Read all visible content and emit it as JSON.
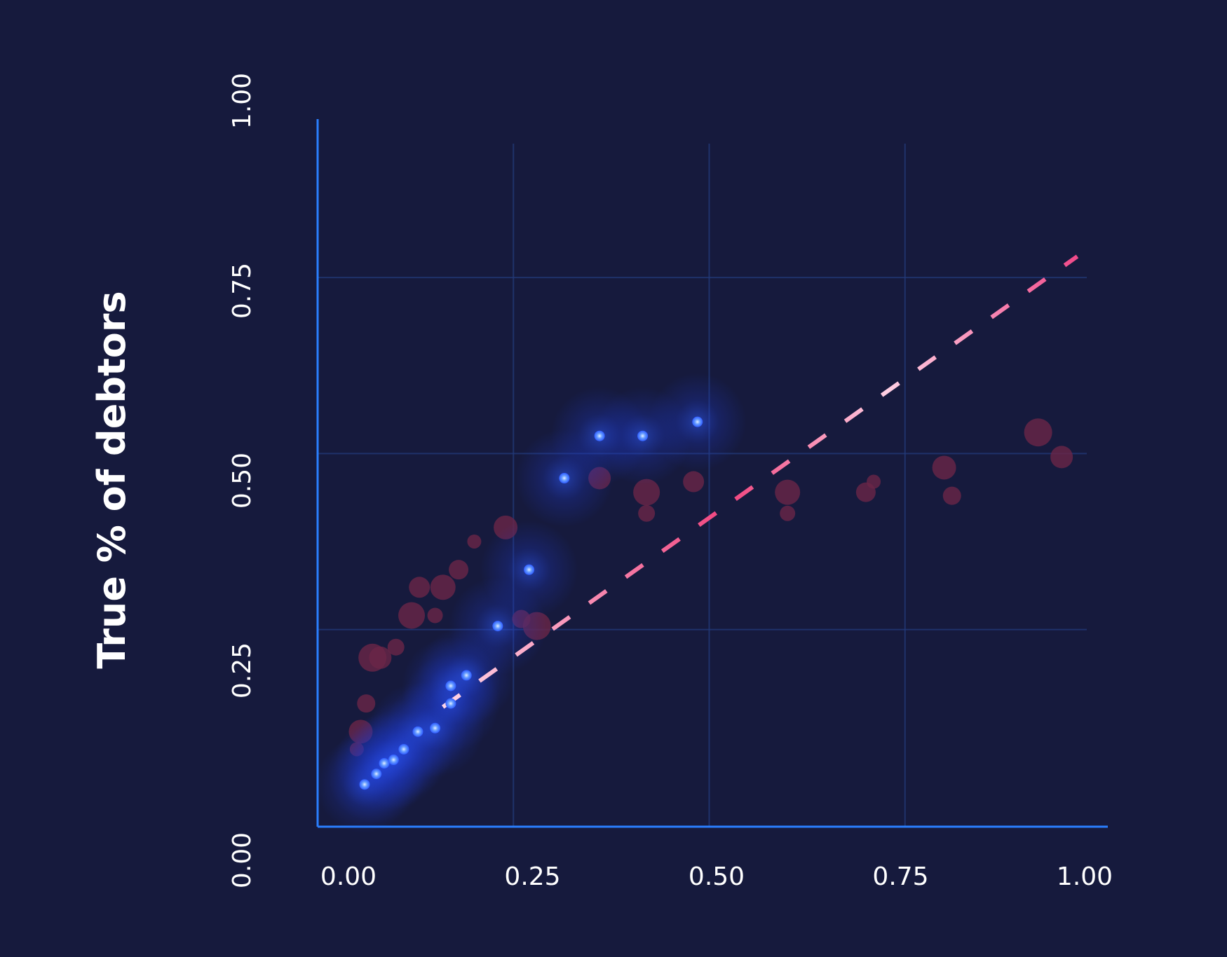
{
  "chart_data": {
    "type": "scatter",
    "title": "",
    "xlabel": "",
    "ylabel": "True % of debtors",
    "xlim": [
      0,
      1
    ],
    "ylim": [
      0,
      1
    ],
    "x_ticks": [
      "0.00",
      "0.25",
      "0.50",
      "0.75",
      "1.00"
    ],
    "y_ticks": [
      "0.00",
      "0.25",
      "0.50",
      "0.75",
      "1.00"
    ],
    "grid": true,
    "legend": "none",
    "colors": {
      "background": "#161a3d",
      "grid": "#233a7a",
      "axis": "#2a7fff",
      "calibrated": "#4a8cff",
      "uncalibrated": "#6a2547",
      "reference_line": "#f04a8a"
    },
    "reference_line": {
      "x": [
        0.16,
        0.97
      ],
      "y": [
        0.17,
        0.81
      ]
    },
    "series": [
      {
        "name": "",
        "style": "glow",
        "x": [
          0.06,
          0.075,
          0.085,
          0.097,
          0.11,
          0.128,
          0.15,
          0.17,
          0.17,
          0.19,
          0.23,
          0.27,
          0.315,
          0.36,
          0.415,
          0.485
        ],
        "y": [
          0.06,
          0.075,
          0.09,
          0.095,
          0.11,
          0.135,
          0.14,
          0.175,
          0.2,
          0.215,
          0.285,
          0.365,
          0.495,
          0.555,
          0.555,
          0.575
        ]
      },
      {
        "name": "",
        "style": "faint",
        "x": [
          0.05,
          0.055,
          0.062,
          0.07,
          0.08,
          0.1,
          0.12,
          0.13,
          0.15,
          0.16,
          0.18,
          0.2,
          0.24,
          0.26,
          0.28,
          0.36,
          0.42,
          0.42,
          0.48,
          0.6,
          0.6,
          0.7,
          0.71,
          0.8,
          0.81,
          0.92,
          0.95
        ],
        "y": [
          0.11,
          0.135,
          0.175,
          0.24,
          0.24,
          0.255,
          0.3,
          0.34,
          0.3,
          0.34,
          0.365,
          0.405,
          0.425,
          0.295,
          0.285,
          0.495,
          0.445,
          0.475,
          0.49,
          0.445,
          0.475,
          0.475,
          0.49,
          0.51,
          0.47,
          0.56,
          0.525
        ]
      }
    ]
  }
}
